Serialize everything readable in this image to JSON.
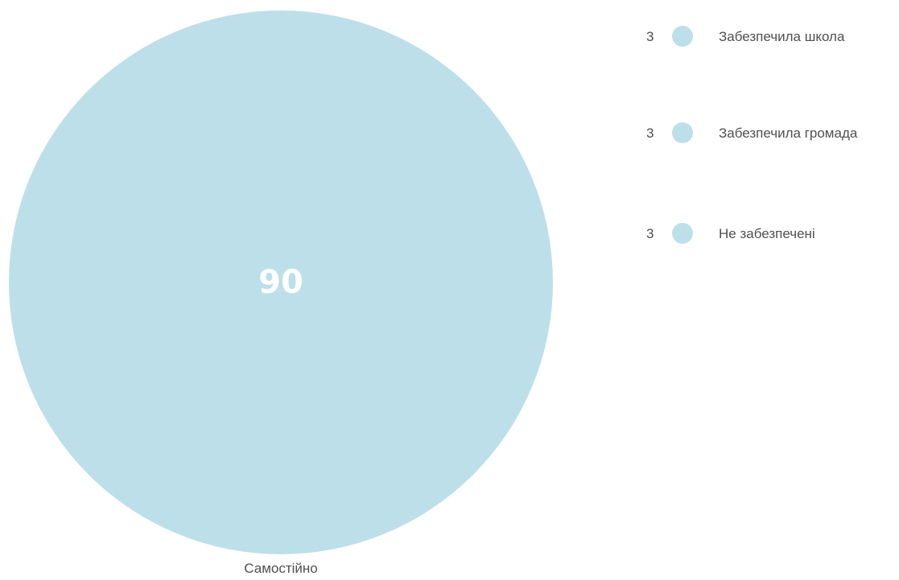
{
  "chart_data": {
    "type": "pie",
    "categories": [
      "Самостійно",
      "Забезпечила школа",
      "Забезпечила громада",
      "Не забезпечені"
    ],
    "values": [
      90,
      3,
      3,
      3
    ],
    "colors": {
      "circle": "#bddfea",
      "legend_dot": "#bddfea",
      "center_text": "#ffffff",
      "text": "#505050"
    }
  },
  "main": {
    "label": "Самостійно",
    "value": "90"
  },
  "legend": {
    "items": [
      {
        "value": "3",
        "label": "Забезпечила школа"
      },
      {
        "value": "3",
        "label": "Забезпечила громада"
      },
      {
        "value": "3",
        "label": "Не забезпечені"
      }
    ]
  }
}
